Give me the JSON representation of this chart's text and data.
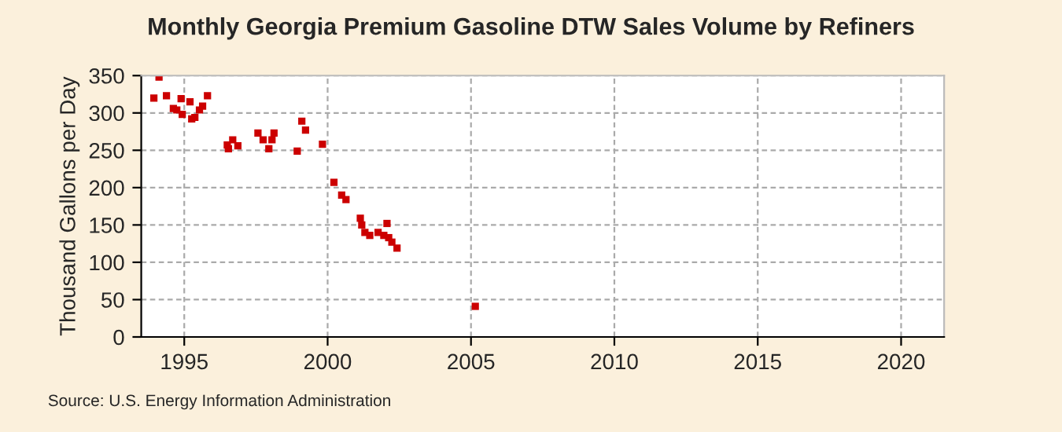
{
  "chart_data": {
    "type": "scatter",
    "title": "Monthly Georgia Premium Gasoline DTW Sales Volume by Refiners",
    "ylabel": "Thousand Gallons per Day",
    "annotations": [
      "Source: U.S. Energy Information Administration"
    ],
    "x": [
      1993.94,
      1994.12,
      1994.38,
      1994.62,
      1994.74,
      1994.89,
      1994.93,
      1995.2,
      1995.26,
      1995.37,
      1995.53,
      1995.64,
      1995.81,
      1996.5,
      1996.54,
      1996.69,
      1996.87,
      1997.57,
      1997.75,
      1997.95,
      1998.06,
      1998.13,
      1998.94,
      1999.1,
      1999.23,
      1999.82,
      2000.22,
      2000.49,
      2000.64,
      2001.14,
      2001.19,
      2001.3,
      2001.47,
      2001.76,
      2001.96,
      2002.07,
      2002.13,
      2002.24,
      2002.42,
      2005.15
    ],
    "series": [
      {
        "color": "#cc0000",
        "values": [
          320,
          348,
          323,
          306,
          304,
          319,
          298,
          315,
          292,
          294,
          304,
          309,
          323,
          257,
          252,
          264,
          256,
          273,
          264,
          252,
          264,
          273,
          249,
          289,
          277,
          258,
          207,
          190,
          184,
          159,
          150,
          140,
          136,
          140,
          136,
          152,
          133,
          127,
          119,
          41
        ]
      }
    ],
    "xlim": [
      1993.5,
      2021.5
    ],
    "xticks": [
      1995,
      2000,
      2005,
      2010,
      2015,
      2020
    ],
    "ylim": [
      0,
      350
    ],
    "yticks": [
      0,
      50,
      100,
      150,
      200,
      250,
      300,
      350
    ],
    "grid": true,
    "marker": "square",
    "legend": false
  }
}
